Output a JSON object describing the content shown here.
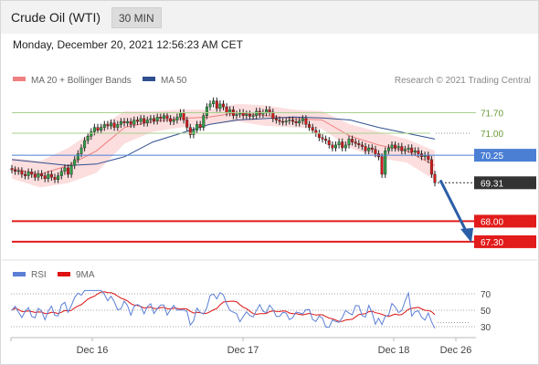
{
  "header": {
    "title": "Crude Oil (WTI)",
    "timeframe": "30 MIN"
  },
  "timestamp": "Monday, December 20, 2021 12:56:23 AM CET",
  "legend": {
    "ma20_label": "MA 20 + Bollinger Bands",
    "ma50_label": "MA 50",
    "copyright": "Research © 2021 Trading Central",
    "ma20_color": "#f08080",
    "ma50_color": "#2f4f8f"
  },
  "rsi_legend": {
    "rsi_label": "RSI",
    "ma_label": "9MA",
    "rsi_color": "#5b7fd6",
    "ma_color": "#dd1111"
  },
  "chart_data": {
    "type": "candlestick",
    "price_axis": {
      "ylim": [
        66.8,
        72.4
      ]
    },
    "levels": [
      {
        "label": "71.70",
        "value": 71.7,
        "kind": "resistance",
        "color": "#a9d18e"
      },
      {
        "label": "71.00",
        "value": 71.0,
        "kind": "resistance",
        "color": "#a9d18e"
      },
      {
        "label": "70.25",
        "value": 70.25,
        "kind": "pivot",
        "color": "#4a7fd4"
      },
      {
        "label": "69.31",
        "value": 69.31,
        "kind": "last",
        "color": "#333333"
      },
      {
        "label": "68.00",
        "value": 68.0,
        "kind": "support",
        "color": "#e21b1b"
      },
      {
        "label": "67.30",
        "value": 67.3,
        "kind": "support",
        "color": "#e21b1b"
      }
    ],
    "x_labels": [
      "Dec 16",
      "Dec 17",
      "Dec 18",
      "Dec 26"
    ],
    "closes": [
      69.75,
      69.7,
      69.72,
      69.6,
      69.55,
      69.68,
      69.6,
      69.5,
      69.62,
      69.55,
      69.45,
      69.6,
      69.5,
      69.42,
      69.55,
      69.7,
      69.82,
      69.6,
      69.9,
      70.1,
      70.3,
      70.5,
      70.75,
      70.9,
      71.05,
      71.2,
      71.1,
      71.2,
      71.3,
      71.25,
      71.35,
      71.2,
      71.3,
      71.4,
      71.35,
      71.4,
      71.3,
      71.45,
      71.4,
      71.5,
      71.35,
      71.45,
      71.5,
      71.42,
      71.55,
      71.5,
      71.6,
      71.5,
      71.4,
      71.45,
      71.55,
      71.7,
      71.45,
      71.2,
      70.95,
      71.1,
      71.3,
      71.2,
      71.6,
      71.9,
      72.0,
      72.1,
      71.85,
      72.0,
      71.9,
      71.7,
      71.8,
      71.6,
      71.65,
      71.7,
      71.6,
      71.65,
      71.58,
      71.6,
      71.75,
      71.65,
      71.7,
      71.8,
      71.72,
      71.5,
      71.45,
      71.4,
      71.38,
      71.42,
      71.45,
      71.4,
      71.35,
      71.42,
      71.5,
      71.3,
      71.2,
      71.1,
      71.0,
      70.85,
      70.8,
      70.75,
      70.6,
      70.5,
      70.6,
      70.7,
      70.5,
      70.6,
      70.8,
      70.7,
      70.65,
      70.6,
      70.55,
      70.4,
      70.5,
      70.45,
      70.3,
      70.2,
      69.6,
      70.4,
      70.5,
      70.6,
      70.5,
      70.55,
      70.4,
      70.45,
      70.5,
      70.35,
      70.4,
      70.3,
      70.2,
      70.25,
      70.1,
      69.6,
      69.31
    ],
    "ma20_approx": [
      69.8,
      69.6,
      69.9,
      70.4,
      71.2,
      71.4,
      71.5,
      71.55,
      71.7,
      71.6,
      71.5,
      71.45,
      70.9,
      70.6,
      70.4,
      69.9
    ],
    "ma50_approx": [
      70.1,
      70.0,
      69.9,
      69.95,
      70.2,
      70.7,
      71.0,
      71.3,
      71.45,
      71.5,
      71.55,
      71.52,
      71.45,
      71.2,
      71.0,
      70.8
    ],
    "forecast_target": 67.3,
    "rsi": {
      "levels": [
        70,
        50,
        30
      ],
      "ylim": [
        20,
        80
      ],
      "last": 35
    }
  }
}
